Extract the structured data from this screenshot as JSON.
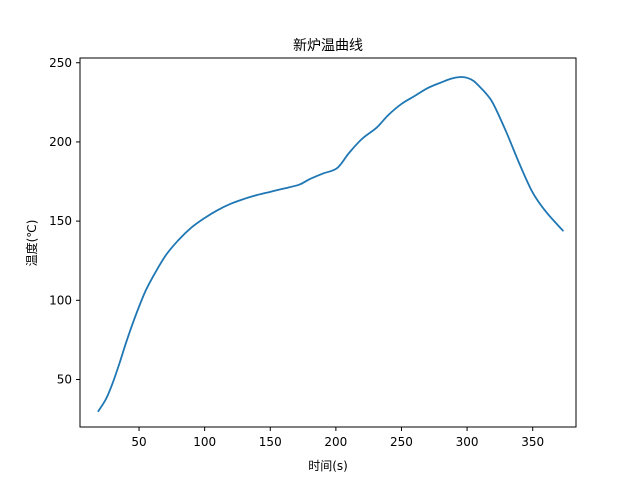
{
  "chart_data": {
    "type": "line",
    "title": "新炉温曲线",
    "xlabel": "时间(s)",
    "ylabel": "温度(℃)",
    "xlim": [
      5,
      383
    ],
    "ylim": [
      20,
      253
    ],
    "xticks": [
      50,
      100,
      150,
      200,
      250,
      300,
      350
    ],
    "yticks": [
      50,
      100,
      150,
      200,
      250
    ],
    "grid": false,
    "legend": "none",
    "colors": {
      "series": "#1f77b4",
      "axes": "#000000",
      "background": "#ffffff"
    },
    "series": [
      {
        "x": [
          19,
          25,
          30,
          35,
          40,
          45,
          50,
          55,
          60,
          70,
          80,
          90,
          100,
          110,
          120,
          130,
          140,
          150,
          160,
          172,
          180,
          190,
          201,
          210,
          220,
          231,
          240,
          250,
          260,
          270,
          280,
          288,
          295,
          300,
          305,
          310,
          315,
          320,
          330,
          340,
          350,
          360,
          373
        ],
        "y": [
          30,
          38,
          48,
          60,
          73,
          85,
          96,
          106,
          114,
          128,
          138,
          146,
          152,
          157,
          161,
          164,
          166.5,
          168.5,
          170.5,
          173,
          176.5,
          180,
          183.5,
          193,
          202,
          209,
          217,
          224,
          229,
          234,
          237.5,
          240,
          241,
          240.5,
          238.5,
          234.5,
          230,
          224,
          206,
          186,
          168,
          156,
          144
        ]
      }
    ]
  }
}
